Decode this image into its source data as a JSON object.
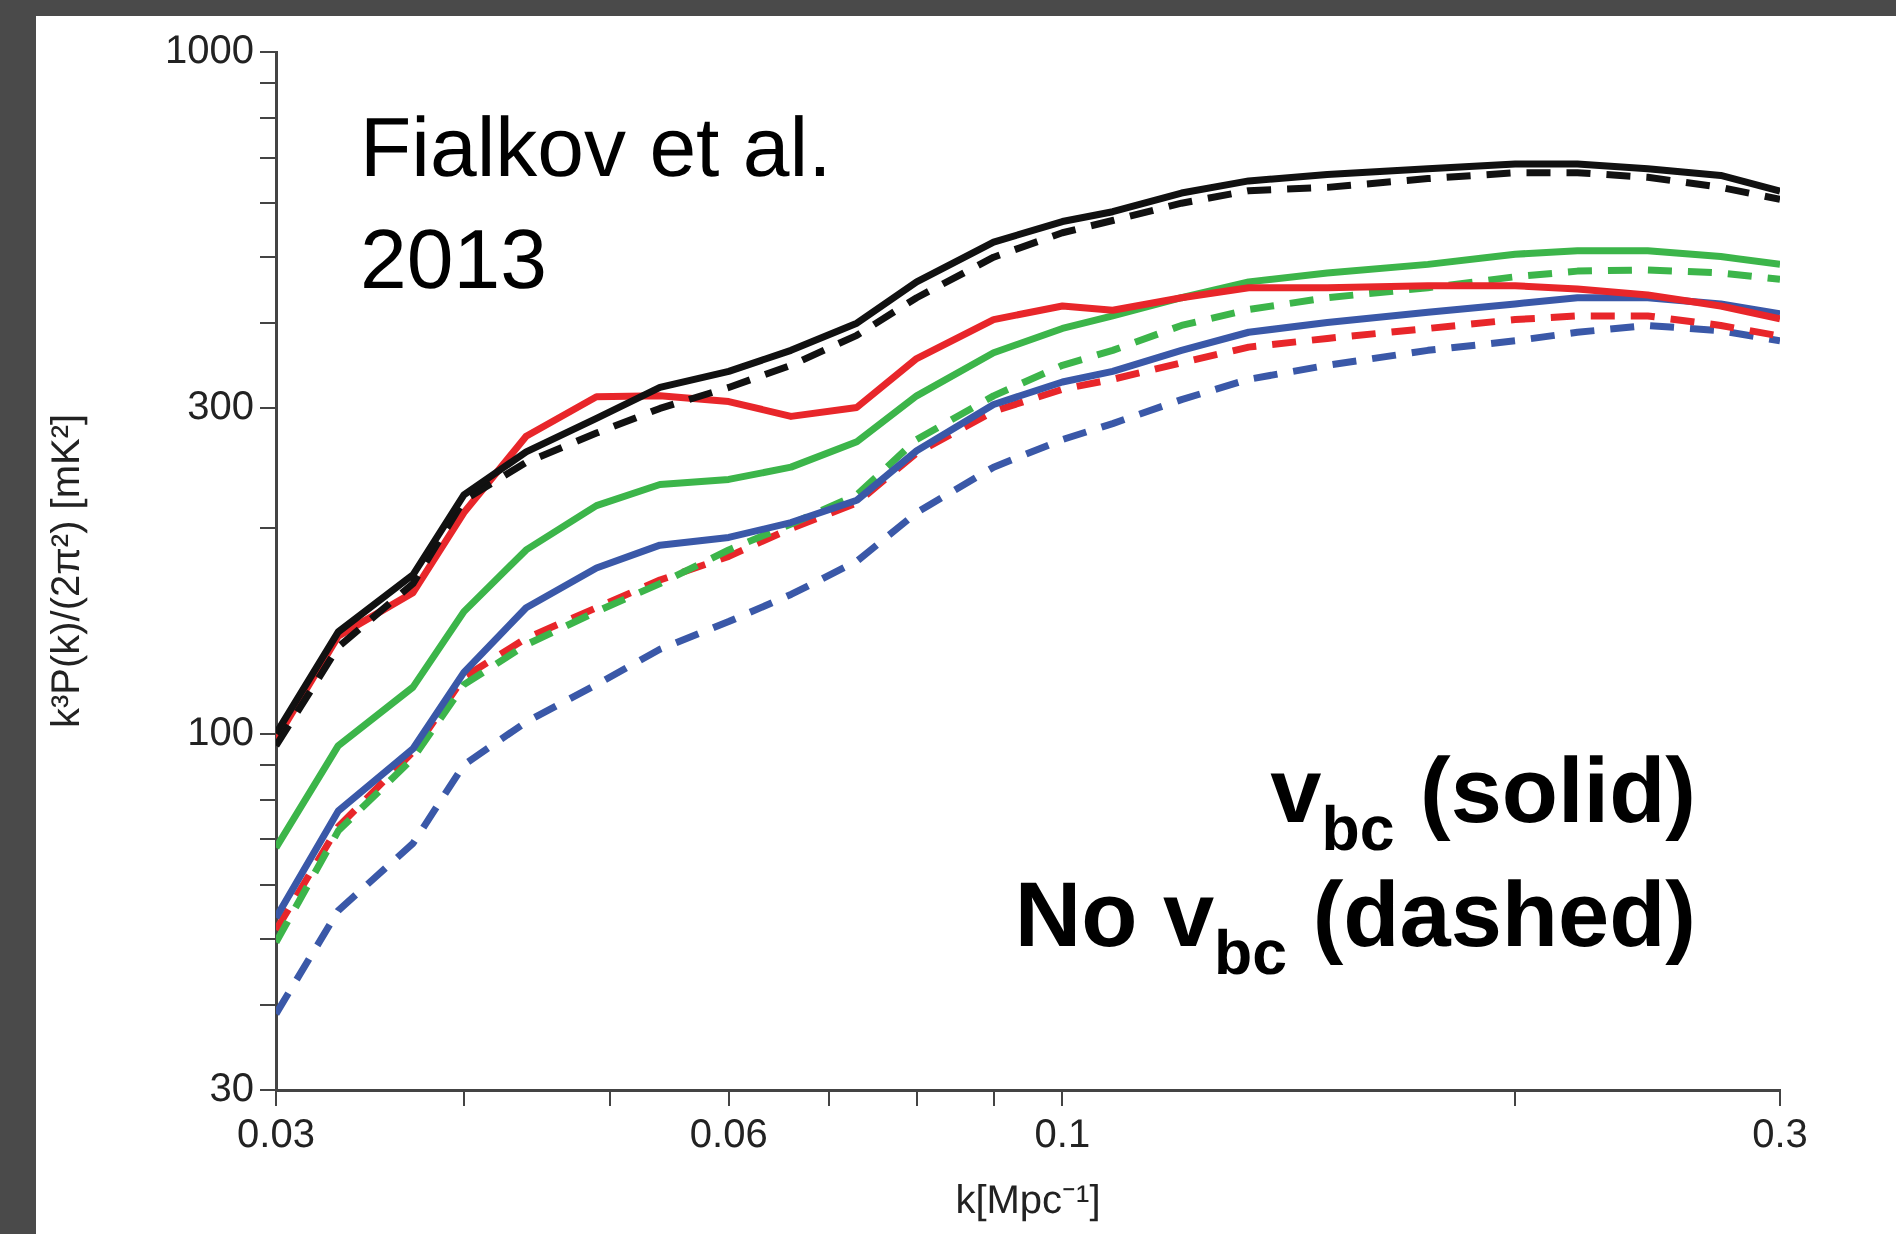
{
  "chart_data": {
    "type": "line",
    "xlabel": "k[Mpc⁻¹]",
    "ylabel": "k³P(k)/(2π²) [mK²]",
    "annotations": [
      "Fialkov et al. 2013",
      "v$_{bc}$ (solid)",
      "No v$_{bc}$ (dashed)"
    ],
    "x": [
      0.03,
      0.033,
      0.037,
      0.04,
      0.044,
      0.049,
      0.054,
      0.06,
      0.066,
      0.073,
      0.08,
      0.09,
      0.1,
      0.108,
      0.12,
      0.133,
      0.15,
      0.175,
      0.2,
      0.22,
      0.245,
      0.274,
      0.3
    ],
    "log": "xy",
    "xlim": [
      0.03,
      0.3
    ],
    "ylim": [
      30,
      1000
    ],
    "xticks": [
      0.03,
      {
        "value": 0.04,
        "label": null
      },
      {
        "value": 0.05,
        "label": null
      },
      0.06,
      {
        "value": 0.07,
        "label": null
      },
      {
        "value": 0.08,
        "label": null
      },
      {
        "value": 0.09,
        "label": null
      },
      0.1,
      {
        "value": 0.2,
        "label": null
      },
      0.3
    ],
    "yticks": [
      30,
      {
        "value": 40,
        "label": null
      },
      {
        "value": 50,
        "label": null
      },
      {
        "value": 60,
        "label": null
      },
      {
        "value": 70,
        "label": null
      },
      {
        "value": 80,
        "label": null
      },
      {
        "value": 90,
        "label": null
      },
      100,
      {
        "value": 200,
        "label": null
      },
      300,
      {
        "value": 400,
        "label": null
      },
      {
        "value": 500,
        "label": null
      },
      {
        "value": 600,
        "label": null
      },
      {
        "value": 700,
        "label": null
      },
      {
        "value": 800,
        "label": null
      },
      {
        "value": 900,
        "label": null
      },
      1000
    ],
    "grid": false,
    "legend": false,
    "marker": "none",
    "series": [
      {
        "color": "#111111",
        "line_style": "solid",
        "values": [
          100,
          141,
          171,
          224,
          259,
          290,
          322,
          340,
          365,
          400,
          460,
          526,
          564,
          583,
          621,
          647,
          661,
          674,
          685,
          685,
          674,
          659,
          625
        ]
      },
      {
        "color": "#111111",
        "line_style": "dashed",
        "values": [
          96,
          134,
          166,
          220,
          250,
          276,
          300,
          322,
          347,
          384,
          436,
          500,
          543,
          566,
          600,
          626,
          633,
          652,
          665,
          665,
          655,
          633,
          608
        ]
      },
      {
        "color": "#e8262a",
        "line_style": "solid",
        "values": [
          98,
          139,
          161,
          211,
          273,
          312,
          313,
          307,
          292,
          301,
          355,
          405,
          424,
          418,
          436,
          451,
          451,
          454,
          454,
          449,
          440,
          424,
          406
        ]
      },
      {
        "color": "#3cb54a",
        "line_style": "solid",
        "values": [
          68,
          96,
          117,
          151,
          186,
          216,
          232,
          236,
          246,
          268,
          313,
          362,
          393,
          410,
          436,
          460,
          474,
          488,
          505,
          511,
          511,
          501,
          488
        ]
      },
      {
        "color": "#3a58a8",
        "line_style": "solid",
        "values": [
          53.7,
          77,
          95,
          123,
          153,
          175,
          189,
          194,
          204,
          220,
          260,
          304,
          328,
          340,
          365,
          388,
          401,
          415,
          427,
          436,
          436,
          427,
          413
        ]
      },
      {
        "color": "#3cb54a",
        "line_style": "dashed",
        "values": [
          49.4,
          72,
          92,
          118,
          135,
          151,
          166,
          186,
          203,
          224,
          270,
          313,
          347,
          365,
          397,
          419,
          436,
          451,
          468,
          477,
          479,
          474,
          464
        ]
      },
      {
        "color": "#e8262a",
        "line_style": "dashed",
        "values": [
          51.5,
          73,
          94,
          121,
          138,
          153,
          168,
          182,
          200,
          218,
          258,
          297,
          320,
          331,
          350,
          369,
          380,
          393,
          405,
          410,
          410,
          397,
          383
        ]
      },
      {
        "color": "#3a58a8",
        "line_style": "dashed",
        "values": [
          38.8,
          55,
          69,
          90,
          104,
          118,
          133,
          146,
          160,
          179,
          211,
          246,
          270,
          285,
          309,
          331,
          347,
          365,
          377,
          388,
          397,
          390,
          377
        ]
      }
    ]
  }
}
